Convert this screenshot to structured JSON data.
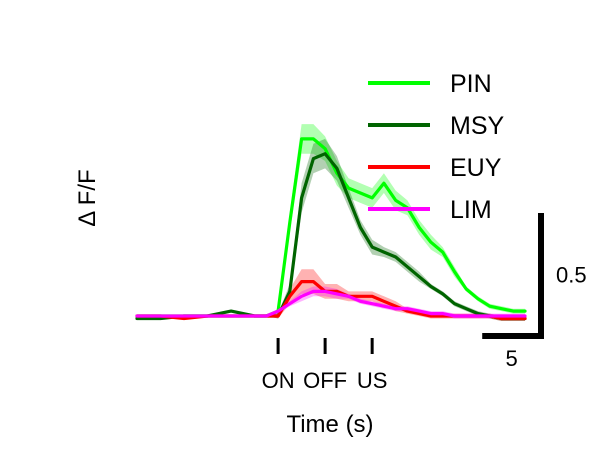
{
  "chart_data": {
    "type": "line",
    "title": "",
    "xlabel": "Time (s)",
    "ylabel": "Δ F/F",
    "xlim": [
      -12,
      21
    ],
    "ylim": [
      -0.26,
      1.0
    ],
    "grid": false,
    "legend_position": "top-right",
    "event_markers": [
      {
        "label": "ON",
        "x": 0
      },
      {
        "label": "OFF",
        "x": 4
      },
      {
        "label": "US",
        "x": 8
      }
    ],
    "scale_bars": {
      "x": {
        "value": 5,
        "label": "5"
      },
      "y": {
        "value": 0.5,
        "label": "0.5"
      }
    },
    "series": [
      {
        "name": "PIN",
        "color": "#00ff00",
        "x": [
          -12,
          -10,
          -8,
          -6,
          -4,
          -2,
          -1,
          0,
          1,
          2,
          3,
          4,
          5,
          6,
          7,
          8,
          9,
          10,
          11,
          12,
          13,
          14,
          15,
          16,
          17,
          18,
          19,
          20,
          21
        ],
        "y": [
          0.0,
          0.0,
          0.0,
          0.0,
          0.0,
          0.0,
          0.0,
          0.02,
          0.38,
          0.72,
          0.72,
          0.68,
          0.58,
          0.52,
          0.5,
          0.48,
          0.54,
          0.47,
          0.44,
          0.36,
          0.3,
          0.26,
          0.18,
          0.11,
          0.07,
          0.04,
          0.03,
          0.02,
          0.02
        ],
        "band": [
          0.0,
          0.0,
          0.0,
          0.0,
          0.0,
          0.0,
          0.0,
          0.01,
          0.04,
          0.06,
          0.06,
          0.05,
          0.05,
          0.04,
          0.04,
          0.04,
          0.04,
          0.04,
          0.03,
          0.03,
          0.03,
          0.02,
          0.02,
          0.01,
          0.01,
          0.01,
          0.01,
          0.01,
          0.01
        ]
      },
      {
        "name": "MSY",
        "color": "#006400",
        "x": [
          -12,
          -10,
          -8,
          -6,
          -4,
          -2,
          -1,
          0,
          1,
          2,
          3,
          4,
          5,
          6,
          7,
          8,
          9,
          10,
          11,
          12,
          13,
          14,
          15,
          16,
          17,
          18,
          19,
          20,
          21
        ],
        "y": [
          -0.01,
          -0.01,
          0.0,
          0.0,
          0.02,
          0.0,
          0.0,
          0.0,
          0.1,
          0.48,
          0.64,
          0.66,
          0.6,
          0.48,
          0.36,
          0.28,
          0.26,
          0.24,
          0.2,
          0.16,
          0.12,
          0.09,
          0.05,
          0.03,
          0.01,
          0.0,
          -0.01,
          -0.01,
          -0.01
        ],
        "band": [
          0.0,
          0.0,
          0.0,
          0.0,
          0.0,
          0.0,
          0.0,
          0.01,
          0.03,
          0.06,
          0.06,
          0.06,
          0.05,
          0.04,
          0.03,
          0.03,
          0.02,
          0.02,
          0.02,
          0.02,
          0.01,
          0.01,
          0.01,
          0.01,
          0.01,
          0.01,
          0.01,
          0.01,
          0.01
        ]
      },
      {
        "name": "EUY",
        "color": "#ff0000",
        "x": [
          -12,
          -10,
          -8,
          -6,
          -4,
          -2,
          -1,
          0,
          1,
          2,
          3,
          4,
          5,
          6,
          7,
          8,
          9,
          10,
          11,
          12,
          13,
          14,
          15,
          16,
          17,
          18,
          19,
          20,
          21
        ],
        "y": [
          0.0,
          0.0,
          -0.01,
          0.0,
          0.0,
          0.0,
          0.0,
          0.0,
          0.08,
          0.14,
          0.14,
          0.1,
          0.1,
          0.08,
          0.08,
          0.08,
          0.06,
          0.04,
          0.02,
          0.01,
          0.0,
          0.0,
          0.0,
          0.0,
          0.0,
          0.0,
          -0.01,
          -0.01,
          -0.01
        ],
        "band": [
          0.0,
          0.0,
          0.0,
          0.0,
          0.0,
          0.0,
          0.0,
          0.01,
          0.03,
          0.05,
          0.05,
          0.03,
          0.03,
          0.02,
          0.02,
          0.02,
          0.02,
          0.02,
          0.01,
          0.01,
          0.01,
          0.01,
          0.01,
          0.01,
          0.01,
          0.01,
          0.01,
          0.01,
          0.01
        ]
      },
      {
        "name": "LIM",
        "color": "#ff00ff",
        "x": [
          -12,
          -10,
          -8,
          -6,
          -4,
          -2,
          -1,
          0,
          1,
          2,
          3,
          4,
          5,
          6,
          7,
          8,
          9,
          10,
          11,
          12,
          13,
          14,
          15,
          16,
          17,
          18,
          19,
          20,
          21
        ],
        "y": [
          0.0,
          0.0,
          0.0,
          0.0,
          0.0,
          0.0,
          0.0,
          0.02,
          0.05,
          0.08,
          0.1,
          0.1,
          0.09,
          0.08,
          0.06,
          0.05,
          0.04,
          0.03,
          0.03,
          0.02,
          0.01,
          0.01,
          0.0,
          0.0,
          0.0,
          0.0,
          0.0,
          0.0,
          0.0
        ],
        "band": [
          0.0,
          0.0,
          0.0,
          0.0,
          0.0,
          0.0,
          0.0,
          0.01,
          0.01,
          0.02,
          0.02,
          0.02,
          0.02,
          0.01,
          0.01,
          0.01,
          0.01,
          0.01,
          0.01,
          0.01,
          0.01,
          0.01,
          0.01,
          0.01,
          0.01,
          0.01,
          0.01,
          0.01,
          0.01
        ]
      }
    ]
  }
}
